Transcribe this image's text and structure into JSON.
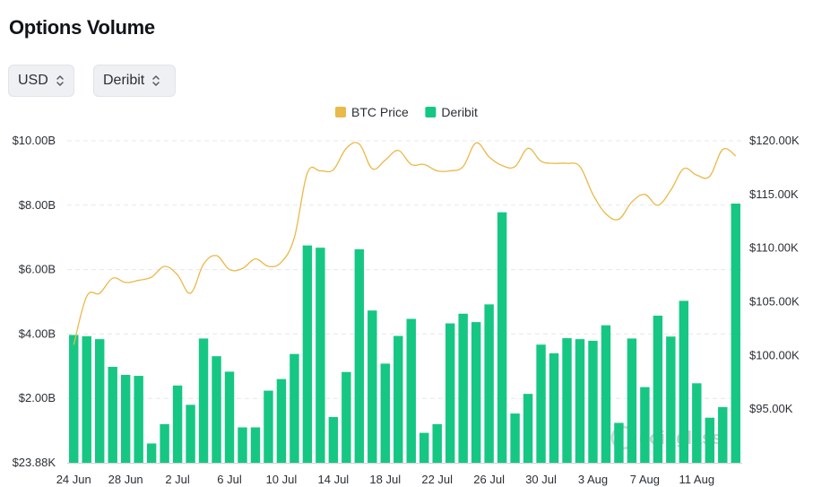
{
  "title": "Options Volume",
  "selectors": {
    "currency": "USD",
    "exchange": "Deribit"
  },
  "watermark": "coinglass",
  "colors": {
    "bar": "#16c784",
    "line": "#e9b949",
    "grid": "#e6e8eb",
    "text": "#2b2f36"
  },
  "chart_data": {
    "type": "bar",
    "legend": [
      "BTC Price",
      "Deribit"
    ],
    "legend_position": "top-center",
    "grid": true,
    "left_axis": {
      "ticks": [
        "$23.88K",
        "$2.00B",
        "$4.00B",
        "$6.00B",
        "$8.00B",
        "$10.00B"
      ],
      "ylim": [
        0,
        10
      ]
    },
    "right_axis": {
      "ticks": [
        "$95.00K",
        "$100.00K",
        "$105.00K",
        "$110.00K",
        "$115.00K",
        "$120.00K"
      ],
      "ylim": [
        90000,
        120000
      ]
    },
    "x_ticks": [
      "24 Jun",
      "28 Jun",
      "2 Jul",
      "6 Jul",
      "10 Jul",
      "14 Jul",
      "18 Jul",
      "22 Jul",
      "26 Jul",
      "30 Jul",
      "3 Aug",
      "7 Aug",
      "11 Aug"
    ],
    "x_tick_start_index": 0,
    "x_tick_step": 4,
    "series": [
      {
        "name": "Deribit",
        "type": "bar",
        "axis": "left",
        "values": [
          3.97,
          3.93,
          3.84,
          2.98,
          2.73,
          2.7,
          0.6,
          1.2,
          2.4,
          1.8,
          3.86,
          3.31,
          2.83,
          1.1,
          1.1,
          2.24,
          2.6,
          3.38,
          6.75,
          6.68,
          1.42,
          2.82,
          6.63,
          4.73,
          3.08,
          3.94,
          4.47,
          0.93,
          1.2,
          4.33,
          4.63,
          4.37,
          4.92,
          7.78,
          1.53,
          2.14,
          3.67,
          3.4,
          3.87,
          3.84,
          3.79,
          4.27,
          1.24,
          3.86,
          2.35,
          4.57,
          3.92,
          5.03,
          2.47,
          1.4,
          1.73,
          8.05
        ]
      },
      {
        "name": "BTC Price",
        "type": "line",
        "axis": "right",
        "values": [
          101000,
          105500,
          105800,
          107200,
          106800,
          107000,
          107300,
          108300,
          107500,
          105800,
          108500,
          109300,
          108000,
          108100,
          109000,
          108300,
          108700,
          111000,
          117000,
          117200,
          117300,
          119300,
          119700,
          117400,
          118200,
          119100,
          117800,
          117800,
          117200,
          117200,
          117600,
          119800,
          118500,
          117700,
          117600,
          119300,
          118100,
          117900,
          117900,
          117600,
          115000,
          113200,
          112700,
          114300,
          115000,
          114000,
          115400,
          117400,
          116800,
          116700,
          119200,
          118600
        ]
      }
    ]
  }
}
